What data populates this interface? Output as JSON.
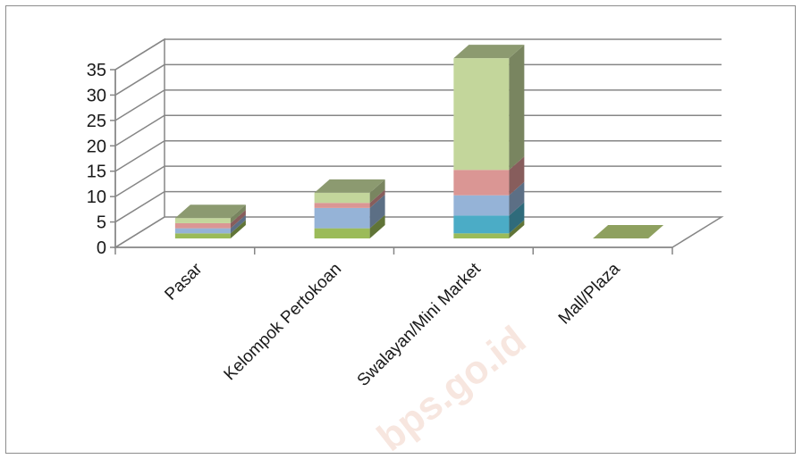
{
  "chart_data": {
    "type": "bar",
    "stacked": true,
    "three_d": true,
    "categories": [
      "Pasar",
      "Kelompok Pertokoan",
      "Swalayan/Mini Market",
      "Mall/Plaza"
    ],
    "series": [
      {
        "color": "#9bbb59",
        "values": [
          1,
          2,
          1,
          0
        ]
      },
      {
        "color": "#4bacc6",
        "values": [
          0,
          0,
          3.5,
          0
        ]
      },
      {
        "color": "#95b3d7",
        "values": [
          1,
          4,
          4,
          0
        ]
      },
      {
        "color": "#da9694",
        "values": [
          1,
          1,
          5,
          0
        ]
      },
      {
        "color": "#c3d69b",
        "values": [
          1,
          2,
          22,
          0
        ]
      }
    ],
    "yticks": [
      "0",
      "5",
      "10",
      "15",
      "20",
      "25",
      "30",
      "35"
    ],
    "ylim": [
      0,
      35
    ],
    "grid": true,
    "legend": "none"
  },
  "watermark": "bps.go.id"
}
